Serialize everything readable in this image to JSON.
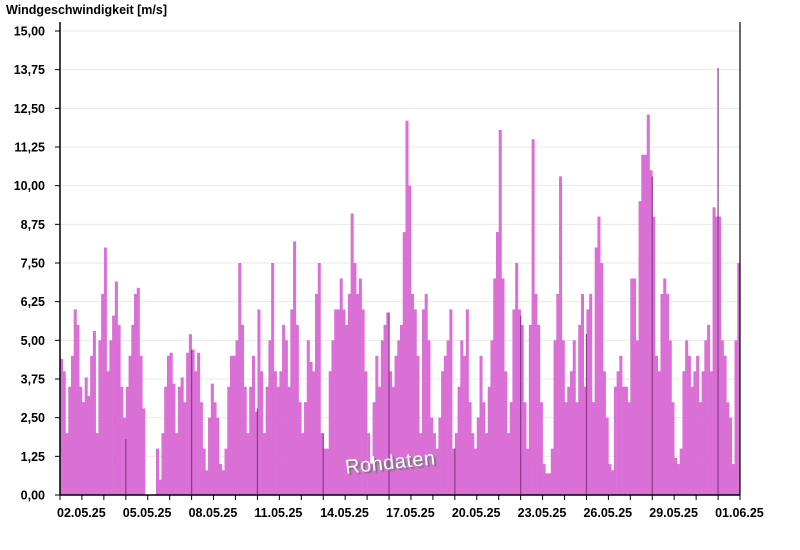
{
  "chart_data": {
    "type": "bar",
    "ylabel": "Windgeschwindigkeit [m/s]",
    "xlabel": "",
    "annotation": "Rohdaten",
    "ylim": [
      0,
      15
    ],
    "y_ticks": [
      "0,00",
      "1,25",
      "2,50",
      "3,75",
      "5,00",
      "6,25",
      "7,50",
      "8,75",
      "10,00",
      "11,25",
      "12,50",
      "13,75",
      "15,00"
    ],
    "x_range": [
      "02.05.25",
      "02.06.25"
    ],
    "x_tick_labels": [
      "02.05.25",
      "05.05.25",
      "08.05.25",
      "11.05.25",
      "14.05.25",
      "17.05.25",
      "20.05.25",
      "23.05.25",
      "26.05.25",
      "29.05.25",
      "01.06.25"
    ],
    "grid": "horizontal",
    "interval_hours": 3,
    "colors": {
      "bars": "#da70d6",
      "tick_markers": "#8b3a8b",
      "grid": "#e8e8e8",
      "axis": "#000000"
    },
    "values": [
      4.4,
      4.0,
      2.0,
      3.5,
      4.5,
      6.0,
      5.5,
      3.5,
      3.0,
      3.8,
      3.2,
      4.5,
      5.3,
      2.0,
      5.0,
      6.5,
      8.0,
      4.0,
      5.0,
      5.8,
      6.9,
      5.5,
      3.5,
      2.5,
      3.5,
      4.5,
      5.5,
      6.5,
      6.7,
      4.5,
      2.8,
      null,
      null,
      null,
      null,
      1.5,
      0.5,
      2.0,
      3.5,
      4.5,
      4.6,
      3.6,
      2.0,
      3.5,
      3.8,
      3.0,
      4.6,
      5.2,
      4.7,
      4.0,
      4.6,
      3.0,
      1.5,
      0.8,
      2.5,
      3.6,
      3.0,
      2.5,
      1.0,
      0.8,
      1.5,
      3.5,
      4.5,
      4.5,
      5.0,
      7.5,
      5.5,
      3.5,
      2.0,
      3.5,
      4.5,
      2.7,
      6.0,
      4.0,
      2.0,
      3.5,
      5.0,
      7.5,
      4.0,
      3.5,
      4.0,
      5.5,
      5.0,
      3.5,
      6.0,
      8.2,
      5.5,
      3.0,
      2.0,
      3.0,
      5.0,
      4.3,
      4.0,
      6.5,
      7.5,
      2.0,
      1.5,
      1.5,
      4.0,
      5.0,
      6.0,
      6.0,
      7.0,
      6.0,
      5.5,
      6.5,
      9.1,
      7.5,
      6.5,
      7.0,
      6.0,
      4.0,
      2.0,
      1.0,
      3.0,
      4.5,
      3.5,
      5.0,
      5.5,
      5.9,
      4.0,
      3.5,
      4.5,
      5.0,
      5.5,
      8.5,
      12.1,
      10.0,
      6.5,
      6.0,
      4.5,
      2.0,
      6.0,
      6.5,
      5.0,
      2.5,
      2.0,
      1.5,
      2.5,
      4.0,
      4.5,
      5.0,
      6.0,
      1.5,
      2.0,
      3.5,
      5.0,
      4.5,
      6.0,
      3.0,
      2.0,
      1.5,
      2.5,
      4.5,
      3.0,
      2.0,
      3.5,
      5.0,
      7.0,
      8.5,
      11.8,
      7.0,
      4.0,
      2.0,
      3.0,
      6.0,
      7.5,
      6.0,
      5.5,
      3.0,
      1.5,
      5.5,
      11.5,
      6.5,
      5.5,
      3.0,
      1.0,
      0.7,
      0.7,
      1.5,
      5.0,
      6.5,
      10.3,
      5.0,
      3.0,
      3.5,
      4.0,
      5.0,
      3.0,
      5.5,
      6.5,
      3.5,
      6.0,
      6.5,
      3.0,
      8.0,
      9.0,
      7.5,
      4.0,
      2.5,
      1.0,
      0.8,
      3.5,
      4.0,
      4.5,
      3.5,
      3.5,
      3.0,
      7.0,
      7.0,
      5.0,
      9.5,
      11.0,
      11.0,
      12.3,
      10.5,
      9.0,
      4.5,
      4.0,
      6.5,
      7.0,
      6.5,
      5.0,
      3.0,
      1.2,
      1.0,
      1.5,
      4.0,
      5.0,
      4.5,
      3.5,
      4.0,
      4.5,
      3.0,
      4.0,
      5.0,
      5.5,
      4.0,
      9.3,
      9.0,
      9.0,
      5.0,
      4.5,
      3.0,
      2.5,
      1.0,
      5.0,
      7.5
    ],
    "tick_marker_values": [
      null,
      1.8,
      4.7,
      2.8,
      2.0,
      5.9,
      1.5,
      5.8,
      5.2,
      10.3,
      13.8
    ]
  }
}
